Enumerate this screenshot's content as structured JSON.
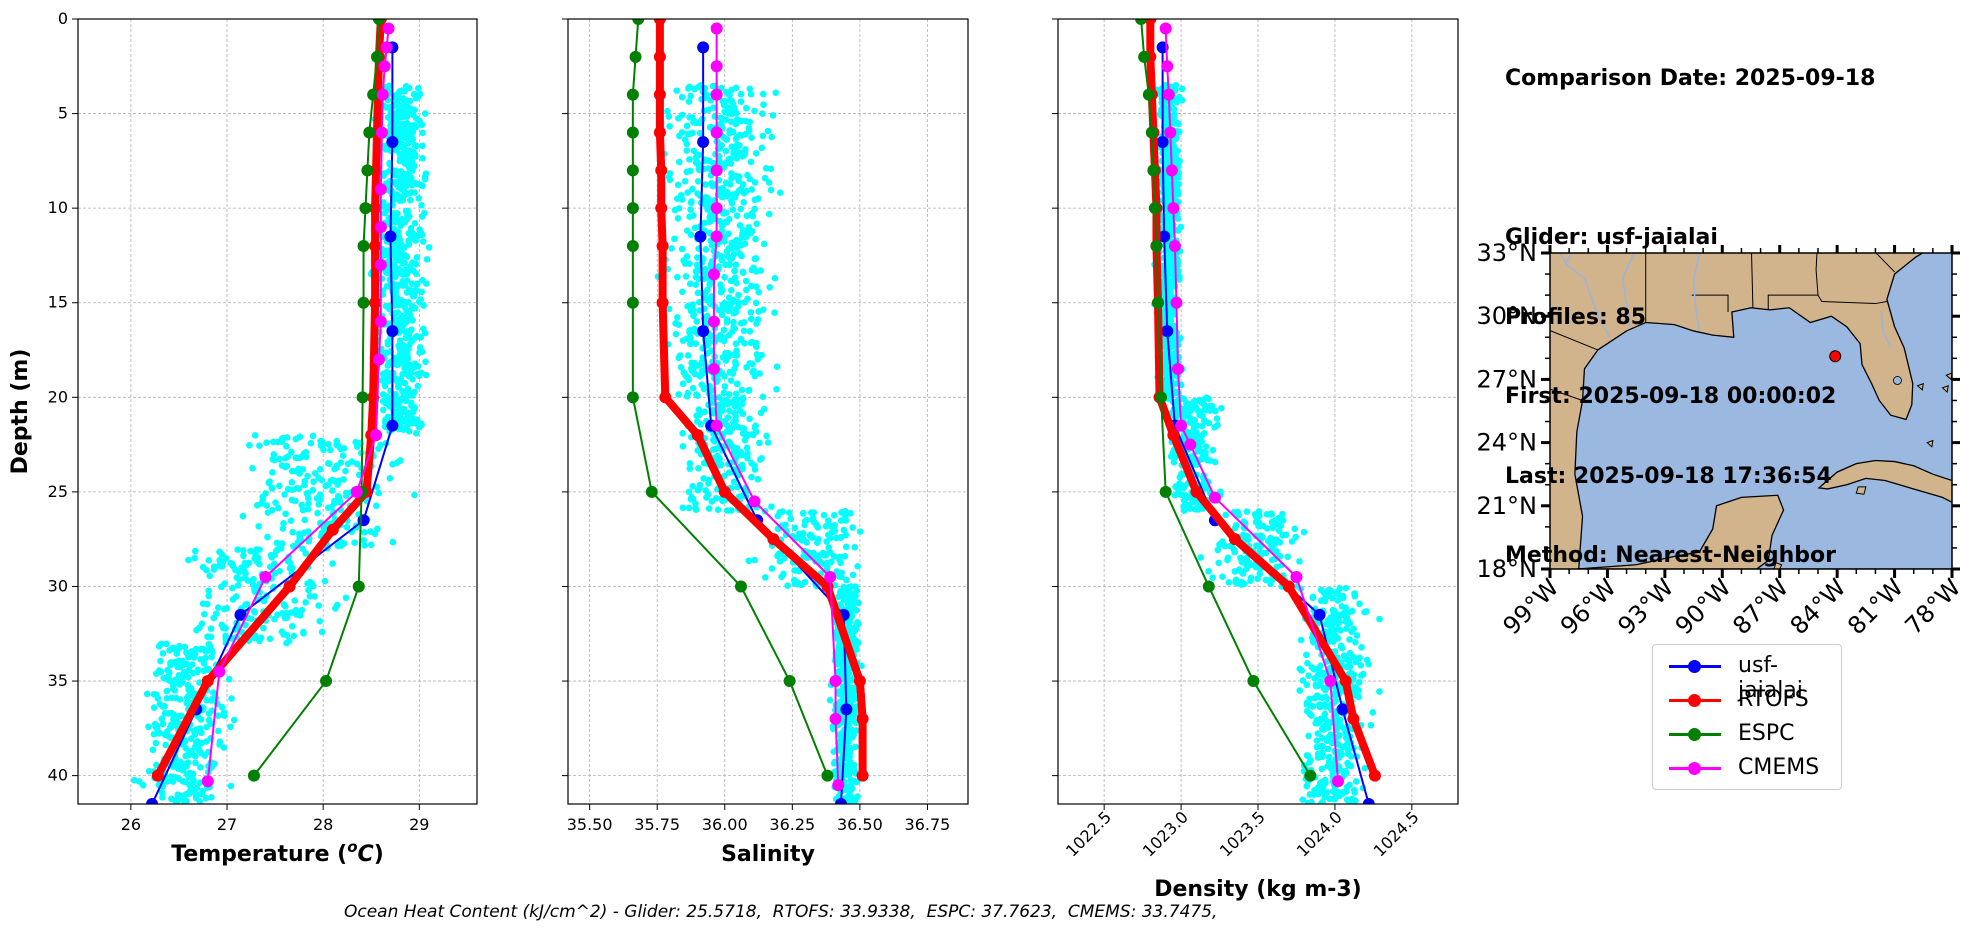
{
  "info": {
    "date_line": "Comparison Date: 2025-09-18",
    "glider_line": "Glider: usf-jaialai",
    "profiles_line": "Profiles: 85",
    "first_line": "First: 2025-09-18 00:00:02",
    "last_line": "Last: 2025-09-18 17:36:54",
    "method_line": "Method: Nearest-Neighbor"
  },
  "footer": "Ocean Heat Content (kJ/cm^2) - Glider: 25.5718,  RTOFS: 33.9338,  ESPC: 37.7623,  CMEMS: 33.7475,",
  "legend": [
    {
      "label": "usf-jaialai",
      "color": "#0000ff"
    },
    {
      "label": "RTOFS",
      "color": "#ff0000"
    },
    {
      "label": "ESPC",
      "color": "#008000"
    },
    {
      "label": "CMEMS",
      "color": "#ff00ff"
    }
  ],
  "colors": {
    "scatter": "#00ffff",
    "land": "#d2b48c",
    "ocean": "#9ab8e0"
  },
  "chart_data": [
    {
      "type": "line",
      "xlabel": "Temperature (°C)",
      "ylabel": "Depth (m)",
      "xlim": [
        25.45,
        29.6
      ],
      "ylim": [
        41.5,
        0
      ],
      "xticks": [
        26,
        27,
        28,
        29
      ],
      "yticks": [
        0,
        5,
        10,
        15,
        20,
        25,
        30,
        35,
        40
      ],
      "grid": true,
      "series": [
        {
          "name": "usf-jaialai",
          "color": "#0000ff",
          "lw": 2,
          "x": [
            28.72,
            28.72,
            28.7,
            28.72,
            28.72,
            28.42,
            27.14,
            26.68,
            26.22
          ],
          "y": [
            1.5,
            6.5,
            11.5,
            16.5,
            21.5,
            26.5,
            31.5,
            36.5,
            41.5
          ]
        },
        {
          "name": "RTOFS",
          "color": "#ff0000",
          "lw": 8,
          "x": [
            28.6,
            28.58,
            28.57,
            28.56,
            28.55,
            28.54,
            28.54,
            28.54,
            28.52,
            28.5,
            28.45,
            28.1,
            27.65,
            26.8,
            26.28
          ],
          "y": [
            0,
            2,
            4,
            6,
            8,
            10,
            12,
            15,
            20,
            22,
            25,
            27,
            30,
            35,
            40
          ]
        },
        {
          "name": "ESPC",
          "color": "#008000",
          "lw": 2,
          "x": [
            28.58,
            28.56,
            28.52,
            28.48,
            28.46,
            28.44,
            28.42,
            28.42,
            28.41,
            28.4,
            28.37,
            28.03,
            27.28
          ],
          "y": [
            0,
            2,
            4,
            6,
            8,
            10,
            12,
            15,
            20,
            25,
            30,
            35,
            40
          ]
        },
        {
          "name": "CMEMS",
          "color": "#ff00ff",
          "lw": 2,
          "x": [
            28.68,
            28.66,
            28.64,
            28.62,
            28.61,
            28.6,
            28.6,
            28.6,
            28.6,
            28.58,
            28.55,
            28.35,
            27.4,
            26.92,
            26.8
          ],
          "y": [
            0.5,
            1.5,
            2.5,
            4,
            6,
            9,
            11,
            13,
            16,
            18,
            22,
            25,
            29.5,
            34.5,
            40.3
          ]
        }
      ],
      "scatter": {
        "color": "#00ffff",
        "bands": [
          {
            "y": [
              3.5,
              22
            ],
            "x": [
              28.45,
              29.15
            ]
          },
          {
            "y": [
              22,
              28
            ],
            "x": [
              26.8,
              29.1
            ]
          },
          {
            "y": [
              28,
              33
            ],
            "x": [
              26.3,
              28.4
            ]
          },
          {
            "y": [
              33,
              41.5
            ],
            "x": [
              25.95,
              27.2
            ]
          }
        ],
        "n": 1400
      }
    },
    {
      "type": "line",
      "xlabel": "Salinity",
      "ylabel": "",
      "xlim": [
        35.42,
        36.9
      ],
      "ylim": [
        41.5,
        0
      ],
      "xticks": [
        35.5,
        35.75,
        36.0,
        36.25,
        36.5,
        36.75
      ],
      "yticks": [
        0,
        5,
        10,
        15,
        20,
        25,
        30,
        35,
        40
      ],
      "grid": true,
      "series": [
        {
          "name": "usf-jaialai",
          "color": "#0000ff",
          "lw": 2,
          "x": [
            35.92,
            35.92,
            35.91,
            35.92,
            35.95,
            36.12,
            36.44,
            36.45,
            36.43
          ],
          "y": [
            1.5,
            6.5,
            11.5,
            16.5,
            21.5,
            26.5,
            31.5,
            36.5,
            41.5
          ]
        },
        {
          "name": "RTOFS",
          "color": "#ff0000",
          "lw": 8,
          "x": [
            35.76,
            35.76,
            35.76,
            35.76,
            35.765,
            35.765,
            35.77,
            35.77,
            35.78,
            35.9,
            36.0,
            36.18,
            36.38,
            36.5,
            36.51,
            36.51
          ],
          "y": [
            0,
            2,
            4,
            6,
            8,
            10,
            12,
            15,
            20,
            22,
            25,
            27.5,
            30,
            35,
            37,
            40
          ]
        },
        {
          "name": "ESPC",
          "color": "#008000",
          "lw": 2,
          "x": [
            35.68,
            35.67,
            35.66,
            35.66,
            35.66,
            35.66,
            35.66,
            35.66,
            35.66,
            35.73,
            36.06,
            36.24,
            36.38
          ],
          "y": [
            0,
            2,
            4,
            6,
            8,
            10,
            12,
            15,
            20,
            25,
            30,
            35,
            40
          ]
        },
        {
          "name": "CMEMS",
          "color": "#ff00ff",
          "lw": 2,
          "x": [
            35.97,
            35.97,
            35.97,
            35.97,
            35.97,
            35.97,
            35.97,
            35.96,
            35.96,
            35.96,
            35.97,
            36.11,
            36.39,
            36.41,
            36.41,
            36.42
          ],
          "y": [
            0.5,
            2.5,
            4,
            6,
            8,
            10,
            11.5,
            13.5,
            16,
            18.5,
            21.5,
            25.5,
            29.5,
            35,
            37,
            40.5
          ]
        }
      ],
      "scatter": {
        "color": "#00ffff",
        "bands": [
          {
            "y": [
              3.5,
              20
            ],
            "x": [
              35.72,
              36.24
            ]
          },
          {
            "y": [
              20,
              26
            ],
            "x": [
              35.78,
              36.22
            ]
          },
          {
            "y": [
              26,
              30
            ],
            "x": [
              36.05,
              36.6
            ]
          },
          {
            "y": [
              30,
              41.5
            ],
            "x": [
              36.38,
              36.52
            ]
          }
        ],
        "n": 1400
      }
    },
    {
      "type": "line",
      "xlabel": "Density (kg m-3)",
      "ylabel": "",
      "xlim": [
        1022.2,
        1024.8
      ],
      "ylim": [
        41.5,
        0
      ],
      "xticks": [
        1022.5,
        1023.0,
        1023.5,
        1024.0,
        1024.5
      ],
      "yticks": [
        0,
        5,
        10,
        15,
        20,
        25,
        30,
        35,
        40
      ],
      "grid": true,
      "series": [
        {
          "name": "usf-jaialai",
          "color": "#0000ff",
          "lw": 2,
          "x": [
            1022.88,
            1022.88,
            1022.89,
            1022.91,
            1022.96,
            1023.22,
            1023.9,
            1024.05,
            1024.22
          ],
          "y": [
            1.5,
            6.5,
            11.5,
            16.5,
            21.5,
            26.5,
            31.5,
            36.5,
            41.5
          ]
        },
        {
          "name": "RTOFS",
          "color": "#ff0000",
          "lw": 8,
          "x": [
            1022.8,
            1022.8,
            1022.81,
            1022.82,
            1022.83,
            1022.84,
            1022.84,
            1022.85,
            1022.86,
            1022.95,
            1023.1,
            1023.35,
            1023.7,
            1024.07,
            1024.12,
            1024.26
          ],
          "y": [
            0,
            2,
            4,
            6,
            8,
            10,
            12,
            15,
            20,
            22,
            25,
            27.5,
            30,
            35,
            37,
            40
          ]
        },
        {
          "name": "ESPC",
          "color": "#008000",
          "lw": 2,
          "x": [
            1022.74,
            1022.76,
            1022.79,
            1022.81,
            1022.82,
            1022.83,
            1022.84,
            1022.85,
            1022.87,
            1022.9,
            1023.18,
            1023.47,
            1023.84
          ],
          "y": [
            0,
            2,
            4,
            6,
            8,
            10,
            12,
            15,
            20,
            25,
            30,
            35,
            40
          ]
        },
        {
          "name": "CMEMS",
          "color": "#ff00ff",
          "lw": 2,
          "x": [
            1022.9,
            1022.91,
            1022.92,
            1022.93,
            1022.94,
            1022.95,
            1022.96,
            1022.97,
            1022.98,
            1023.0,
            1023.06,
            1023.22,
            1023.75,
            1023.97,
            1024.02
          ],
          "y": [
            0.5,
            2.5,
            4,
            6,
            8,
            10,
            12,
            15,
            18.5,
            21.5,
            22.5,
            25.3,
            29.5,
            35,
            40.3
          ]
        }
      ],
      "scatter": {
        "color": "#00ffff",
        "bands": [
          {
            "y": [
              3.5,
              20
            ],
            "x": [
              1022.82,
              1023.02
            ]
          },
          {
            "y": [
              20,
              26
            ],
            "x": [
              1022.85,
              1023.3
            ]
          },
          {
            "y": [
              26,
              30
            ],
            "x": [
              1023.05,
              1023.95
            ]
          },
          {
            "y": [
              30,
              41.5
            ],
            "x": [
              1023.7,
              1024.3
            ]
          }
        ],
        "n": 1400
      }
    }
  ],
  "map": {
    "lon_ticks": [
      "99°W",
      "96°W",
      "93°W",
      "90°W",
      "87°W",
      "84°W",
      "81°W",
      "78°W"
    ],
    "lat_ticks": [
      "33°N",
      "30°N",
      "27°N",
      "24°N",
      "21°N",
      "18°N"
    ],
    "glider_lon": -84.1,
    "glider_lat": 28.1
  }
}
